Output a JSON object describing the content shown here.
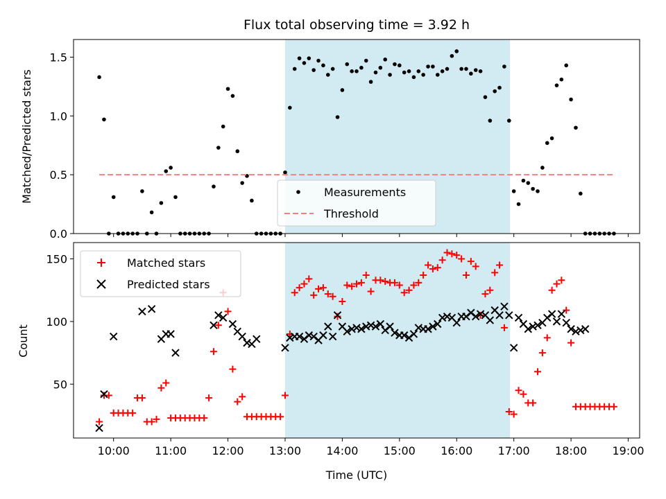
{
  "figure": {
    "title": "Flux total observing time = 3.92 h"
  },
  "chart_data": [
    {
      "type": "scatter",
      "panel": "top",
      "ylabel": "Matched/Predicted stars",
      "xlabel": "",
      "xlim": [
        "09:18",
        "19:12"
      ],
      "ylim": [
        0,
        1.65
      ],
      "yticks": [
        0.0,
        0.5,
        1.0,
        1.5
      ],
      "ytick_labels": [
        "0.0",
        "0.5",
        "1.0",
        "1.5"
      ],
      "xtick_labels_shown": false,
      "shaded_interval": [
        "13:00",
        "16:56"
      ],
      "shade_color": "#add8e6",
      "legend_position": "lower center",
      "series": [
        {
          "name": "Measurements",
          "kind": "scatter-dot",
          "color": "#000000",
          "x": [
            "09:45",
            "09:50",
            "09:55",
            "10:00",
            "10:05",
            "10:10",
            "10:15",
            "10:20",
            "10:25",
            "10:30",
            "10:35",
            "10:40",
            "10:45",
            "10:50",
            "10:55",
            "11:00",
            "11:05",
            "11:10",
            "11:15",
            "11:20",
            "11:25",
            "11:30",
            "11:35",
            "11:40",
            "11:45",
            "11:50",
            "11:55",
            "12:00",
            "12:05",
            "12:10",
            "12:15",
            "12:20",
            "12:25",
            "12:30",
            "12:35",
            "12:40",
            "12:45",
            "12:50",
            "12:55",
            "13:00",
            "13:05",
            "13:10",
            "13:15",
            "13:20",
            "13:25",
            "13:30",
            "13:35",
            "13:40",
            "13:45",
            "13:50",
            "13:55",
            "14:00",
            "14:05",
            "14:10",
            "14:15",
            "14:20",
            "14:25",
            "14:30",
            "14:35",
            "14:40",
            "14:45",
            "14:50",
            "14:55",
            "15:00",
            "15:05",
            "15:10",
            "15:15",
            "15:20",
            "15:25",
            "15:30",
            "15:35",
            "15:40",
            "15:45",
            "15:50",
            "15:55",
            "16:00",
            "16:05",
            "16:10",
            "16:15",
            "16:20",
            "16:25",
            "16:30",
            "16:35",
            "16:40",
            "16:45",
            "16:50",
            "16:55",
            "17:00",
            "17:05",
            "17:10",
            "17:15",
            "17:20",
            "17:25",
            "17:30",
            "17:35",
            "17:40",
            "17:45",
            "17:50",
            "17:55",
            "18:00",
            "18:05",
            "18:10",
            "18:15",
            "18:20",
            "18:25",
            "18:30",
            "18:35",
            "18:40",
            "18:45"
          ],
          "y": [
            1.33,
            0.97,
            0.0,
            0.31,
            0.0,
            0.0,
            0.0,
            0.0,
            0.0,
            0.36,
            0.0,
            0.18,
            0.0,
            0.26,
            0.53,
            0.56,
            0.31,
            0.0,
            0.0,
            0.0,
            0.0,
            0.0,
            0.0,
            0.0,
            0.4,
            0.73,
            0.91,
            1.23,
            1.17,
            0.7,
            0.43,
            0.49,
            0.28,
            0.0,
            0.0,
            0.0,
            0.0,
            0.0,
            0.0,
            0.52,
            1.07,
            1.4,
            1.49,
            1.45,
            1.49,
            1.39,
            1.47,
            1.43,
            1.35,
            1.4,
            0.99,
            1.22,
            1.44,
            1.38,
            1.38,
            1.41,
            1.47,
            1.29,
            1.37,
            1.41,
            1.48,
            1.35,
            1.44,
            1.43,
            1.37,
            1.38,
            1.33,
            1.38,
            1.35,
            1.42,
            1.42,
            1.35,
            1.38,
            1.4,
            1.51,
            1.55,
            1.4,
            1.4,
            1.36,
            1.39,
            1.38,
            1.16,
            0.96,
            1.21,
            1.24,
            1.42,
            0.96,
            0.36,
            0.25,
            0.45,
            0.43,
            0.38,
            0.36,
            0.56,
            0.77,
            0.81,
            1.26,
            1.31,
            1.43,
            1.14,
            0.9,
            0.34,
            0.0,
            0.0,
            0.0,
            0.0,
            0.0,
            0.0,
            0.0
          ]
        },
        {
          "name": "Threshold",
          "kind": "dashed-line",
          "color": "#f08080",
          "x": [
            "09:45",
            "18:45"
          ],
          "y": [
            0.5,
            0.5
          ]
        }
      ]
    },
    {
      "type": "scatter",
      "panel": "bottom",
      "ylabel": "Count",
      "xlabel": "Time (UTC)",
      "xlim": [
        "09:18",
        "19:12"
      ],
      "ylim": [
        7,
        163
      ],
      "yticks": [
        50,
        100,
        150
      ],
      "ytick_labels": [
        "50",
        "100",
        "150"
      ],
      "xticks": [
        "10:00",
        "11:00",
        "12:00",
        "13:00",
        "14:00",
        "15:00",
        "16:00",
        "17:00",
        "18:00",
        "19:00"
      ],
      "xtick_labels": [
        "10:00",
        "11:00",
        "12:00",
        "13:00",
        "14:00",
        "15:00",
        "16:00",
        "17:00",
        "18:00",
        "19:00"
      ],
      "shaded_interval": [
        "13:00",
        "16:56"
      ],
      "shade_color": "#add8e6",
      "legend_position": "upper left",
      "series": [
        {
          "name": "Matched stars",
          "kind": "plus",
          "color": "#ff0000",
          "x": [
            "09:45",
            "09:50",
            "09:55",
            "10:00",
            "10:05",
            "10:10",
            "10:15",
            "10:20",
            "10:25",
            "10:30",
            "10:35",
            "10:40",
            "10:45",
            "10:50",
            "10:55",
            "11:00",
            "11:05",
            "11:10",
            "11:15",
            "11:20",
            "11:25",
            "11:30",
            "11:35",
            "11:40",
            "11:45",
            "11:50",
            "11:55",
            "12:00",
            "12:05",
            "12:10",
            "12:15",
            "12:20",
            "12:25",
            "12:30",
            "12:35",
            "12:40",
            "12:45",
            "12:50",
            "12:55",
            "13:00",
            "13:05",
            "13:10",
            "13:15",
            "13:20",
            "13:25",
            "13:30",
            "13:35",
            "13:40",
            "13:45",
            "13:50",
            "13:55",
            "14:00",
            "14:05",
            "14:10",
            "14:15",
            "14:20",
            "14:25",
            "14:30",
            "14:35",
            "14:40",
            "14:45",
            "14:50",
            "14:55",
            "15:00",
            "15:05",
            "15:10",
            "15:15",
            "15:20",
            "15:25",
            "15:30",
            "15:35",
            "15:40",
            "15:45",
            "15:50",
            "15:55",
            "16:00",
            "16:05",
            "16:10",
            "16:15",
            "16:20",
            "16:25",
            "16:30",
            "16:35",
            "16:40",
            "16:45",
            "16:50",
            "16:55",
            "17:00",
            "17:05",
            "17:10",
            "17:15",
            "17:20",
            "17:25",
            "17:30",
            "17:35",
            "17:40",
            "17:45",
            "17:50",
            "17:55",
            "18:00",
            "18:05",
            "18:10",
            "18:15",
            "18:20",
            "18:25",
            "18:30",
            "18:35",
            "18:40",
            "18:45"
          ],
          "y": [
            20,
            41,
            41,
            27,
            27,
            27,
            27,
            27,
            39,
            39,
            20,
            20,
            22,
            47,
            51,
            23,
            23,
            23,
            23,
            23,
            23,
            23,
            23,
            39,
            76,
            97,
            123,
            108,
            62,
            36,
            40,
            24,
            24,
            24,
            24,
            24,
            24,
            24,
            24,
            41,
            90,
            123,
            127,
            130,
            134,
            121,
            126,
            127,
            122,
            120,
            104,
            116,
            129,
            128,
            130,
            131,
            137,
            124,
            133,
            133,
            132,
            131,
            131,
            129,
            123,
            125,
            129,
            131,
            137,
            145,
            142,
            143,
            149,
            155,
            154,
            153,
            150,
            137,
            148,
            144,
            105,
            122,
            125,
            139,
            145,
            95,
            28,
            26,
            45,
            42,
            35,
            35,
            60,
            75,
            87,
            125,
            130,
            133,
            109,
            83,
            32,
            32,
            32,
            32,
            32,
            32,
            32,
            32,
            32
          ]
        },
        {
          "name": "Predicted stars",
          "kind": "cross",
          "color": "#000000",
          "x": [
            "09:45",
            "09:50",
            "10:00",
            "10:30",
            "10:40",
            "10:50",
            "10:55",
            "11:00",
            "11:05",
            "11:45",
            "11:50",
            "11:55",
            "12:05",
            "12:10",
            "12:15",
            "12:20",
            "12:25",
            "12:30",
            "13:00",
            "13:05",
            "13:10",
            "13:15",
            "13:20",
            "13:25",
            "13:30",
            "13:35",
            "13:40",
            "13:45",
            "13:50",
            "13:55",
            "14:00",
            "14:05",
            "14:10",
            "14:15",
            "14:20",
            "14:25",
            "14:30",
            "14:35",
            "14:40",
            "14:45",
            "14:50",
            "14:55",
            "15:00",
            "15:05",
            "15:10",
            "15:15",
            "15:20",
            "15:25",
            "15:30",
            "15:35",
            "15:40",
            "15:45",
            "15:50",
            "15:55",
            "16:00",
            "16:05",
            "16:10",
            "16:15",
            "16:20",
            "16:25",
            "16:30",
            "16:35",
            "16:40",
            "16:45",
            "16:50",
            "16:55",
            "17:00",
            "17:05",
            "17:10",
            "17:15",
            "17:20",
            "17:25",
            "17:30",
            "17:35",
            "17:40",
            "17:45",
            "17:50",
            "17:55",
            "18:00",
            "18:05",
            "18:10",
            "18:15"
          ],
          "y": [
            15,
            42,
            88,
            108,
            110,
            86,
            90,
            90,
            75,
            97,
            105,
            103,
            98,
            92,
            88,
            83,
            82,
            86,
            79,
            87,
            88,
            88,
            86,
            89,
            88,
            85,
            89,
            96,
            88,
            105,
            96,
            92,
            94,
            95,
            94,
            96,
            97,
            96,
            98,
            93,
            96,
            91,
            89,
            89,
            87,
            90,
            95,
            94,
            94,
            96,
            98,
            103,
            104,
            103,
            99,
            104,
            104,
            107,
            104,
            106,
            105,
            101,
            109,
            105,
            112,
            105,
            79,
            103,
            98,
            94,
            96,
            97,
            99,
            103,
            106,
            100,
            106,
            99,
            94,
            92,
            93,
            94
          ]
        }
      ]
    }
  ]
}
